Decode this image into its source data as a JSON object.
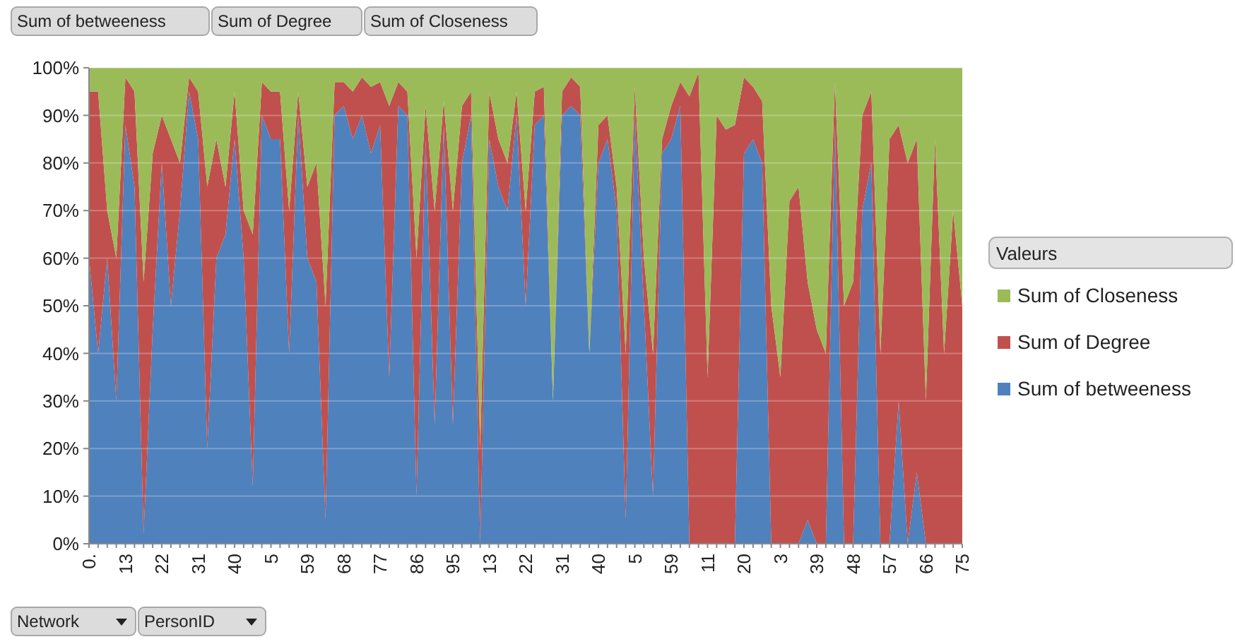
{
  "chart_data": {
    "type": "area",
    "stacked": true,
    "categories": [
      "0.",
      null,
      null,
      null,
      "13",
      null,
      null,
      null,
      "22",
      null,
      null,
      null,
      "31",
      null,
      null,
      null,
      "40",
      null,
      null,
      null,
      "5",
      null,
      null,
      null,
      "59",
      null,
      null,
      null,
      "68",
      null,
      null,
      null,
      "77",
      null,
      null,
      null,
      "86",
      null,
      null,
      null,
      "95",
      null,
      null,
      null,
      "13",
      null,
      null,
      null,
      "22",
      null,
      null,
      null,
      "31",
      null,
      null,
      null,
      "40",
      null,
      null,
      null,
      "5",
      null,
      null,
      null,
      "59",
      null,
      null,
      null,
      "11",
      null,
      null,
      null,
      "20",
      null,
      null,
      null,
      "3",
      null,
      null,
      null,
      "39",
      null,
      null,
      null,
      "48",
      null,
      null,
      null,
      "57",
      null,
      null,
      null,
      "66",
      null,
      null,
      null,
      "75"
    ],
    "series": [
      {
        "name": "Sum of betweeness",
        "color": "#4f81bd",
        "values": [
          60,
          40,
          60,
          30,
          88,
          75,
          2,
          45,
          80,
          50,
          70,
          95,
          85,
          20,
          60,
          65,
          85,
          60,
          12,
          90,
          85,
          85,
          40,
          90,
          60,
          55,
          5,
          90,
          92,
          85,
          90,
          82,
          88,
          35,
          92,
          90,
          10,
          85,
          25,
          88,
          25,
          80,
          90,
          0,
          85,
          75,
          70,
          90,
          50,
          88,
          90,
          30,
          90,
          92,
          90,
          40,
          80,
          85,
          70,
          5,
          90,
          50,
          10,
          82,
          85,
          92,
          0,
          0,
          0,
          0,
          0,
          0,
          82,
          85,
          80,
          0,
          0,
          0,
          0,
          5,
          0,
          0,
          88,
          0,
          0,
          70,
          80,
          0,
          0,
          30,
          0,
          15,
          0,
          0,
          0,
          0,
          0
        ]
      },
      {
        "name": "Sum of Degree",
        "color": "#c0504d",
        "values": [
          35,
          55,
          10,
          30,
          10,
          20,
          53,
          37,
          10,
          35,
          10,
          3,
          10,
          55,
          25,
          10,
          10,
          10,
          53,
          7,
          10,
          10,
          30,
          5,
          15,
          25,
          45,
          7,
          5,
          10,
          8,
          14,
          9,
          57,
          5,
          5,
          50,
          7,
          45,
          5,
          45,
          12,
          5,
          20,
          10,
          10,
          10,
          5,
          20,
          7,
          6,
          0,
          5,
          6,
          6,
          0,
          8,
          5,
          5,
          35,
          6,
          10,
          30,
          3,
          7,
          5,
          94,
          99,
          35,
          90,
          87,
          88,
          16,
          11,
          13,
          50,
          35,
          72,
          75,
          50,
          45,
          40,
          9,
          50,
          55,
          20,
          15,
          40,
          85,
          58,
          80,
          70,
          30,
          85,
          40,
          70,
          50
        ]
      },
      {
        "name": "Sum of Closeness",
        "color": "#9bbb59",
        "values": [
          5,
          5,
          30,
          40,
          2,
          5,
          45,
          18,
          10,
          15,
          20,
          2,
          5,
          25,
          15,
          25,
          5,
          30,
          35,
          3,
          5,
          5,
          30,
          5,
          25,
          20,
          50,
          3,
          3,
          5,
          2,
          4,
          3,
          8,
          3,
          5,
          40,
          8,
          30,
          7,
          30,
          8,
          5,
          80,
          5,
          15,
          20,
          5,
          30,
          5,
          4,
          70,
          5,
          2,
          4,
          60,
          12,
          10,
          25,
          60,
          4,
          40,
          60,
          15,
          8,
          3,
          6,
          1,
          65,
          10,
          13,
          12,
          2,
          4,
          7,
          50,
          65,
          28,
          25,
          45,
          55,
          60,
          3,
          50,
          45,
          10,
          5,
          60,
          15,
          12,
          20,
          15,
          70,
          15,
          60,
          30,
          50
        ]
      }
    ],
    "ylim": [
      0,
      100
    ],
    "yticks": [
      {
        "value": 0,
        "label": "0%"
      },
      {
        "value": 10,
        "label": "10%"
      },
      {
        "value": 20,
        "label": "20%"
      },
      {
        "value": 30,
        "label": "30%"
      },
      {
        "value": 40,
        "label": "40%"
      },
      {
        "value": 50,
        "label": "50%"
      },
      {
        "value": 60,
        "label": "60%"
      },
      {
        "value": 70,
        "label": "70%"
      },
      {
        "value": 80,
        "label": "80%"
      },
      {
        "value": 90,
        "label": "90%"
      },
      {
        "value": 100,
        "label": "100%"
      }
    ],
    "grid": "y",
    "legend": "right",
    "legend_title": "Valeurs",
    "annotations": [
      "Sum of betweeness",
      "Sum of Degree",
      "Sum of Closeness",
      "Network",
      "PersonID"
    ]
  }
}
